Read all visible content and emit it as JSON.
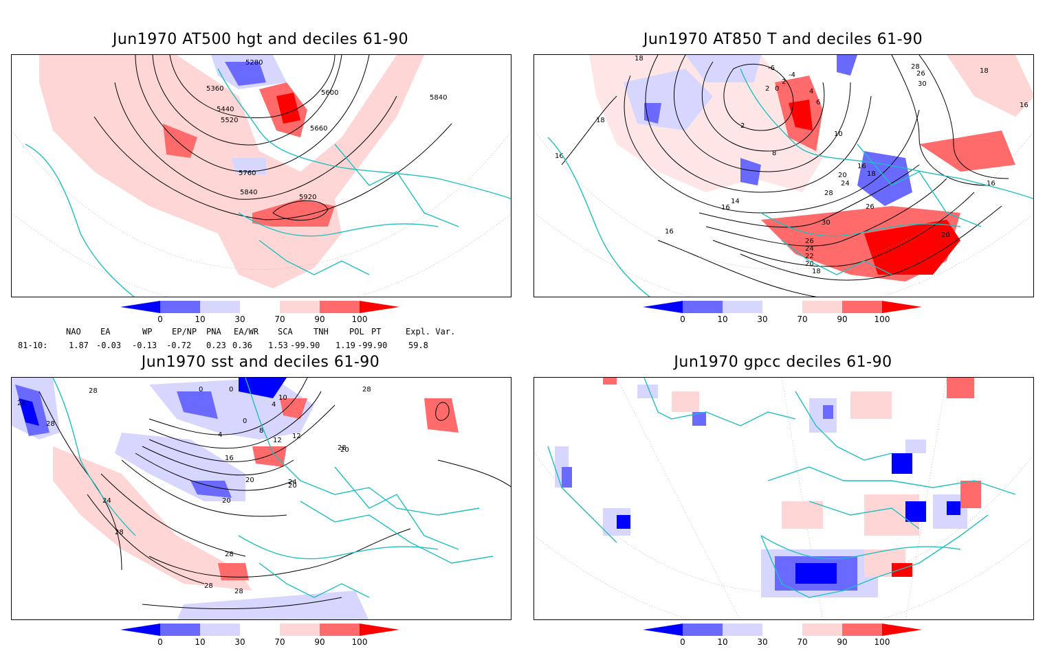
{
  "panels": [
    {
      "title": "Jun1970 AT500 hgt and deciles 61-90",
      "contour_labels": [
        "5280",
        "5360",
        "5440",
        "5520",
        "5600",
        "5660",
        "5760",
        "5840",
        "5920",
        "5840"
      ]
    },
    {
      "title": "Jun1970 AT850 T and deciles 61-90",
      "contour_labels": [
        "18",
        "16",
        "18",
        "8",
        "2",
        "2",
        "0",
        "-6",
        "-4",
        "2",
        "4",
        "6",
        "10",
        "16",
        "18",
        "20",
        "24",
        "28",
        "26",
        "30",
        "14",
        "16",
        "26",
        "24",
        "22",
        "20",
        "18",
        "20",
        "26",
        "28",
        "30",
        "16",
        "18",
        "16",
        "16"
      ]
    },
    {
      "title": "Jun1970 sst and deciles 61-90",
      "contour_labels": [
        "24",
        "28",
        "28",
        "0",
        "0",
        "0",
        "4",
        "4",
        "10",
        "8",
        "12",
        "12",
        "16",
        "20",
        "20",
        "24",
        "28",
        "28",
        "28",
        "24",
        "28",
        "28",
        "20",
        "20",
        "28"
      ]
    },
    {
      "title": "Jun1970 gpcc deciles 61-90",
      "contour_labels": []
    }
  ],
  "colorbar": {
    "ticks": [
      "0",
      "10",
      "30",
      "70",
      "90",
      "100"
    ],
    "colors": [
      "#0000ff",
      "#6a6aff",
      "#d6d6ff",
      "#ffffff",
      "#ffd6d6",
      "#ff6a6a",
      "#ff0000"
    ]
  },
  "indices": {
    "headers": [
      "NAO",
      "EA",
      "WP",
      "EP/NP",
      "PNA",
      "EA/WR",
      "SCA",
      "TNH",
      "POL",
      "PT",
      "Expl. Var."
    ],
    "row_label": "81-10:",
    "values": [
      "1.87",
      "-0.03",
      "-0.13",
      "-0.72",
      "0.23",
      "0.36",
      "1.53",
      "-99.90",
      "1.19",
      "-99.90",
      "59.8"
    ]
  }
}
